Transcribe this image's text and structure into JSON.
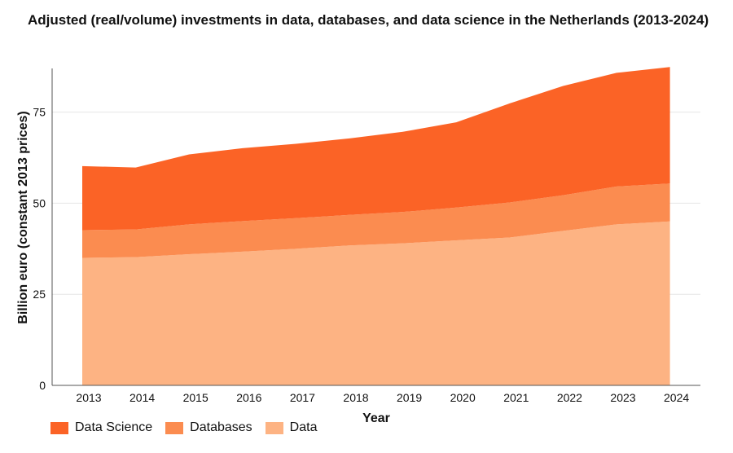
{
  "chart_data": {
    "type": "area",
    "stacked": true,
    "title": "Adjusted (real/volume) investments in data, databases, and data science in the Netherlands (2013-2024)",
    "xlabel": "Year",
    "ylabel": "Billion euro (constant 2013 prices)",
    "categories": [
      "2013",
      "2014",
      "2015",
      "2016",
      "2017",
      "2018",
      "2019",
      "2020",
      "2021",
      "2022",
      "2023",
      "2024"
    ],
    "ylim": [
      0,
      87
    ],
    "yticks": [
      0,
      25,
      50,
      75
    ],
    "grid": true,
    "legend_position": "bottom-left",
    "series": [
      {
        "name": "Data",
        "color": "#fdb383",
        "values": [
          35.0,
          35.2,
          36.0,
          36.7,
          37.5,
          38.4,
          39.0,
          39.8,
          40.6,
          42.4,
          44.2,
          45.0
        ]
      },
      {
        "name": "Databases",
        "color": "#fb8c50",
        "values": [
          7.6,
          7.6,
          8.2,
          8.4,
          8.4,
          8.4,
          8.6,
          9.0,
          9.6,
          9.8,
          10.4,
          10.4
        ]
      },
      {
        "name": "Data Science",
        "color": "#fb6326",
        "values": [
          17.6,
          17.0,
          19.2,
          20.0,
          20.4,
          21.0,
          22.0,
          23.4,
          27.2,
          30.0,
          31.2,
          32.0
        ]
      }
    ]
  }
}
